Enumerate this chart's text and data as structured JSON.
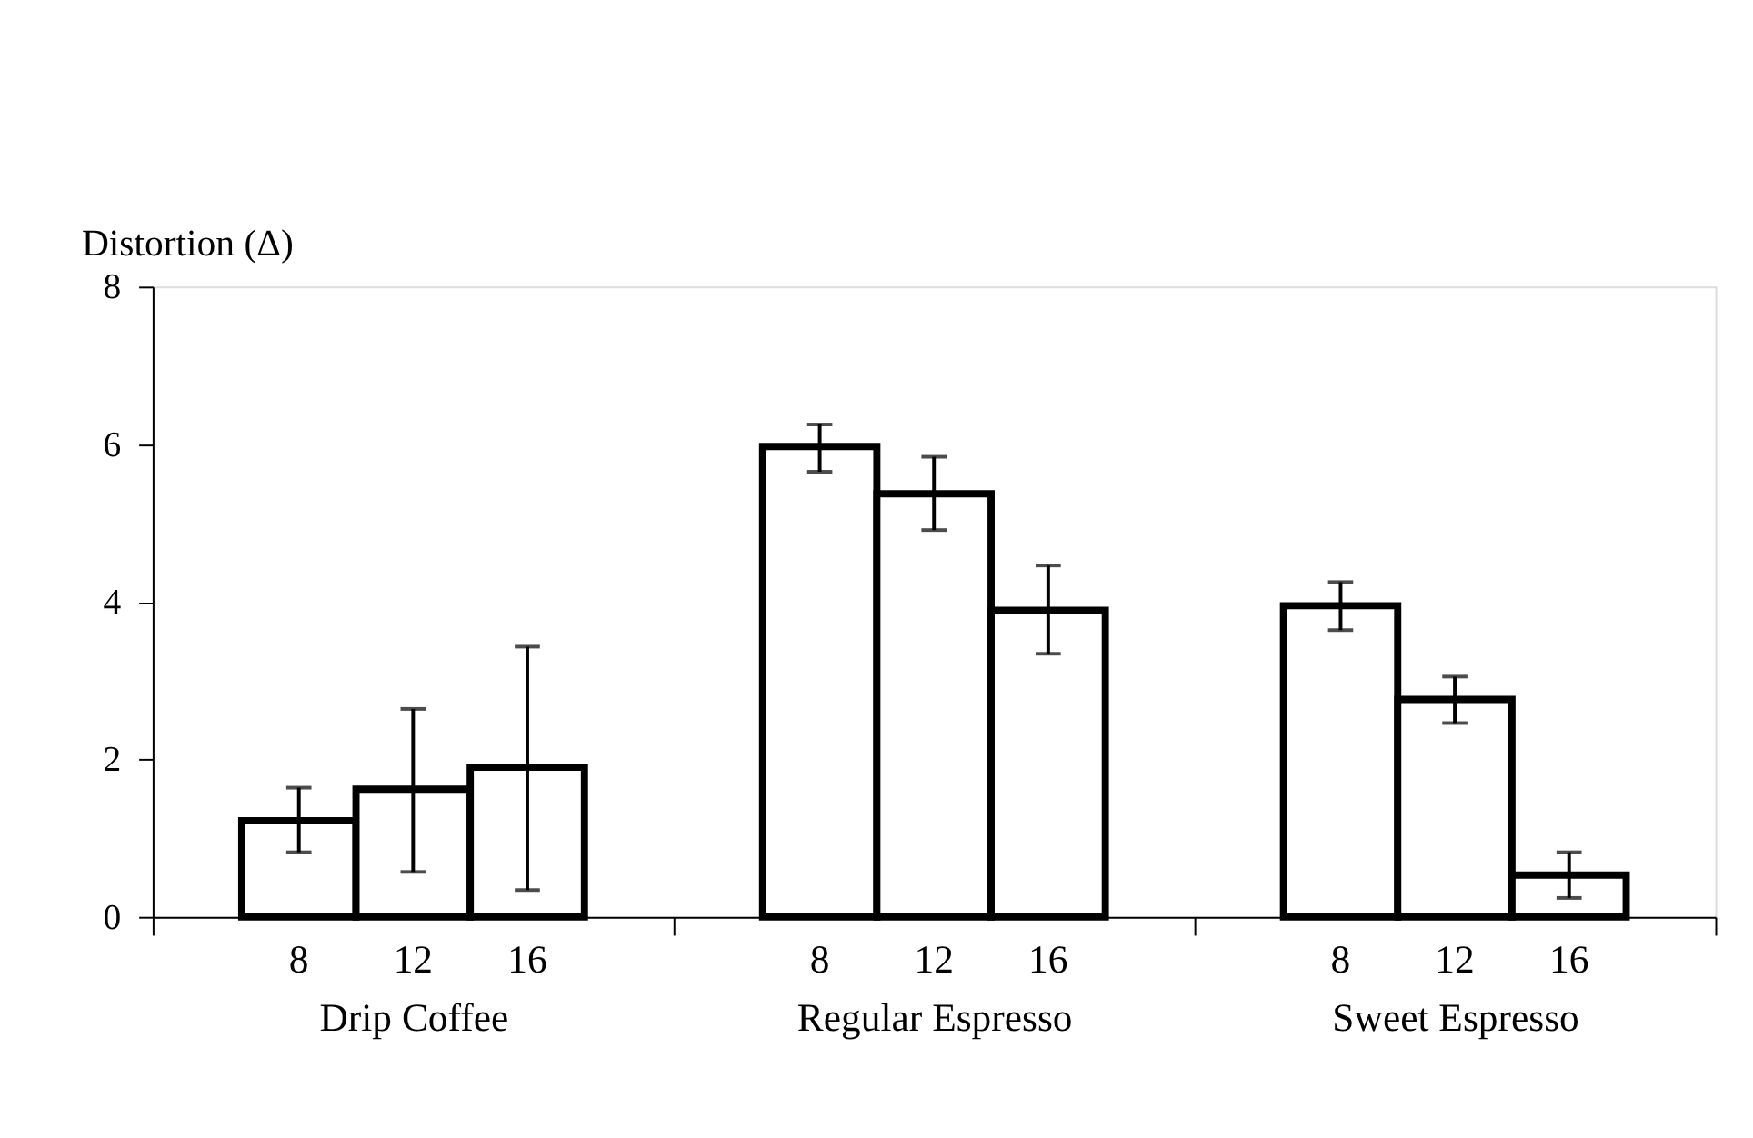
{
  "chart_data": {
    "type": "bar",
    "ylabel": "Distortion (Δ)",
    "categories": [
      "Drip Coffee",
      "Regular Espresso",
      "Sweet Espresso"
    ],
    "series": [
      {
        "name": "8",
        "color": "#ffffff",
        "values": [
          1.22,
          5.97,
          3.95
        ],
        "errors": [
          [
            0.82,
            1.64
          ],
          [
            5.65,
            6.25
          ],
          [
            3.64,
            4.25
          ]
        ]
      },
      {
        "name": "12",
        "color": "#ffffff",
        "values": [
          1.62,
          5.37,
          2.76
        ],
        "errors": [
          [
            0.57,
            2.64
          ],
          [
            4.91,
            5.84
          ],
          [
            2.46,
            3.05
          ]
        ]
      },
      {
        "name": "16",
        "color": "#ffffff",
        "values": [
          1.9,
          3.89,
          0.53
        ],
        "errors": [
          [
            0.34,
            3.43
          ],
          [
            3.34,
            4.46
          ],
          [
            0.24,
            0.82
          ]
        ]
      }
    ],
    "ylim": [
      0,
      8
    ],
    "yticks": [
      0,
      2,
      4,
      6,
      8
    ],
    "grid": false
  }
}
